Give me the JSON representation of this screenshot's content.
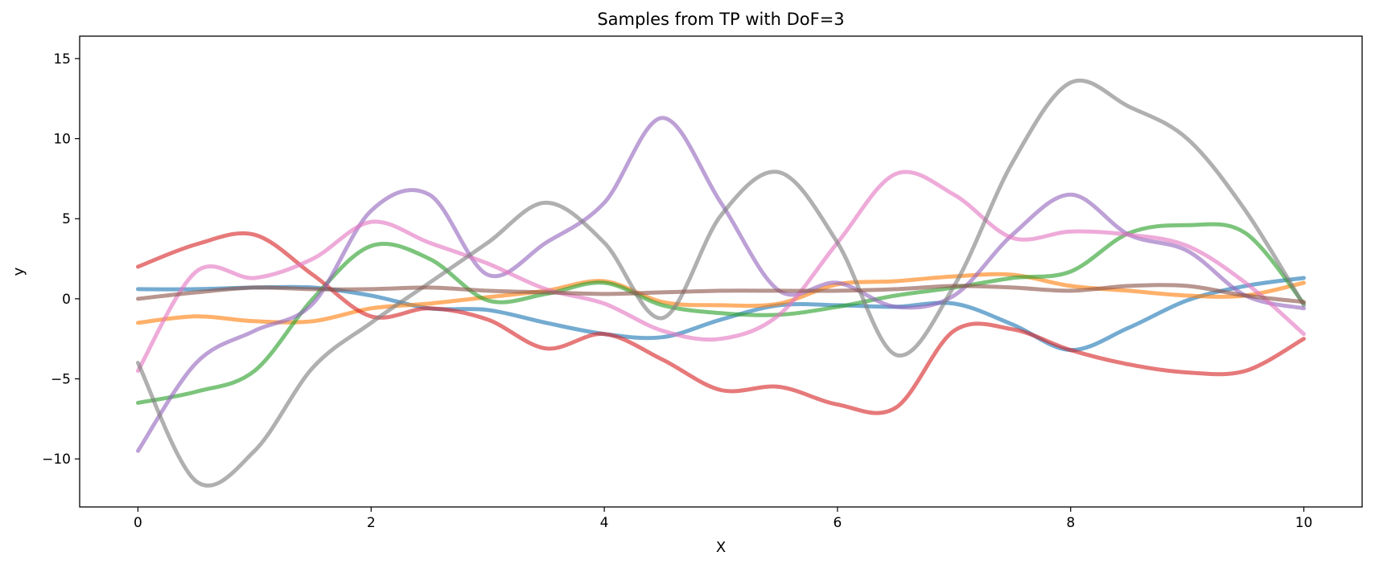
{
  "chart_data": {
    "type": "line",
    "title": "Samples from TP with DoF=3",
    "xlabel": "X",
    "ylabel": "y",
    "xlim": [
      -0.5,
      10.5
    ],
    "ylim": [
      -13,
      16.4
    ],
    "xticks": [
      0,
      2,
      4,
      6,
      8,
      10
    ],
    "yticks": [
      -10,
      -5,
      0,
      5,
      10,
      15
    ],
    "grid": false,
    "legend": "none",
    "x": [
      0,
      0.5,
      1,
      1.5,
      2,
      2.5,
      3,
      3.5,
      4,
      4.5,
      5,
      5.5,
      6,
      6.5,
      7,
      7.5,
      8,
      8.5,
      9,
      9.5,
      10
    ],
    "series": [
      {
        "color": "#1f77b4",
        "values": [
          0.6,
          0.6,
          0.7,
          0.7,
          0.2,
          -0.6,
          -0.7,
          -1.5,
          -2.2,
          -2.4,
          -1.3,
          -0.4,
          -0.4,
          -0.5,
          -0.3,
          -1.6,
          -3.2,
          -1.8,
          -0.1,
          0.8,
          1.3
        ]
      },
      {
        "color": "#ff7f0e",
        "values": [
          -1.5,
          -1.1,
          -1.4,
          -1.4,
          -0.6,
          -0.3,
          0.1,
          0.5,
          1.1,
          -0.2,
          -0.4,
          -0.3,
          0.9,
          1.1,
          1.4,
          1.5,
          0.8,
          0.5,
          0.2,
          0.2,
          1.0
        ]
      },
      {
        "color": "#2ca02c",
        "values": [
          -6.5,
          -5.8,
          -4.5,
          0.0,
          3.3,
          2.5,
          -0.1,
          0.3,
          1.0,
          -0.4,
          -0.9,
          -1.0,
          -0.5,
          0.2,
          0.7,
          1.3,
          1.7,
          4.1,
          4.6,
          4.1,
          -0.3
        ]
      },
      {
        "color": "#d62728",
        "values": [
          2.0,
          3.4,
          4.0,
          1.5,
          -1.1,
          -0.6,
          -1.3,
          -3.1,
          -2.2,
          -3.8,
          -5.7,
          -5.5,
          -6.6,
          -6.8,
          -2.0,
          -1.9,
          -3.2,
          -4.1,
          -4.6,
          -4.5,
          -2.5
        ]
      },
      {
        "color": "#9467bd",
        "values": [
          -9.5,
          -4.0,
          -2.0,
          -0.3,
          5.5,
          6.5,
          1.5,
          3.5,
          6.0,
          11.3,
          6.0,
          0.5,
          1.0,
          -0.5,
          0.2,
          4.0,
          6.5,
          4.0,
          3.0,
          0.2,
          -0.6
        ]
      },
      {
        "color": "#e377c2",
        "values": [
          -4.5,
          1.7,
          1.3,
          2.5,
          4.8,
          3.5,
          2.2,
          0.6,
          -0.3,
          -2.0,
          -2.5,
          -1.0,
          3.5,
          7.8,
          6.5,
          3.8,
          4.2,
          4.0,
          3.3,
          1.0,
          -2.2
        ]
      },
      {
        "color": "#7f7f7f",
        "values": [
          -4.0,
          -11.4,
          -9.5,
          -4.3,
          -1.5,
          1.0,
          3.5,
          6.0,
          3.5,
          -1.2,
          5.2,
          7.9,
          3.5,
          -3.5,
          0.8,
          8.5,
          13.5,
          12.0,
          10.0,
          5.5,
          -0.4
        ]
      },
      {
        "color": "#8c564b",
        "values": [
          0.0,
          0.4,
          0.7,
          0.6,
          0.6,
          0.7,
          0.5,
          0.4,
          0.3,
          0.4,
          0.5,
          0.5,
          0.5,
          0.6,
          0.8,
          0.7,
          0.5,
          0.8,
          0.8,
          0.2,
          -0.2
        ]
      }
    ]
  }
}
